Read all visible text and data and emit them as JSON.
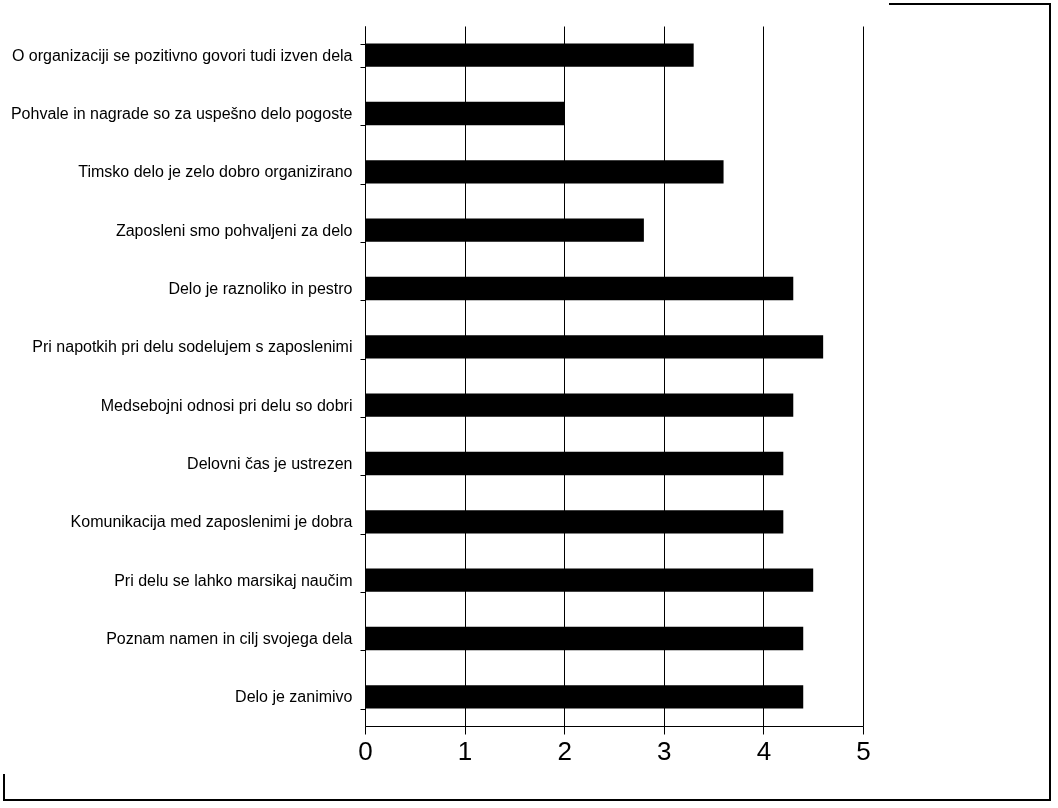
{
  "chart_data": {
    "type": "bar",
    "orientation": "horizontal",
    "categories": [
      "O organizaciji se pozitivno govori tudi izven dela",
      "Pohvale in nagrade so za uspešno delo pogoste",
      "Timsko delo je zelo dobro organizirano",
      "Zaposleni smo pohvaljeni za delo",
      "Delo je raznoliko in pestro",
      "Pri napotkih pri delu sodelujem s zaposlenimi",
      "Medsebojni odnosi pri delu so dobri",
      "Delovni čas je ustrezen",
      "Komunikacija med zaposlenimi je dobra",
      "Pri delu se lahko marsikaj naučim",
      "Poznam namen in cilj svojega dela",
      "Delo je zanimivo"
    ],
    "values": [
      3.3,
      2.0,
      3.6,
      2.8,
      4.3,
      4.6,
      4.3,
      4.2,
      4.2,
      4.5,
      4.4,
      4.4
    ],
    "color": "#000000",
    "xlim": [
      0,
      5
    ],
    "xticks": [
      0,
      1,
      2,
      3,
      4,
      5
    ],
    "grid": "x"
  }
}
